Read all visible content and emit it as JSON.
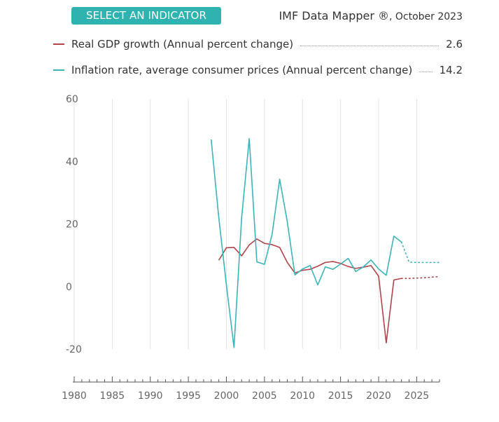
{
  "header": {
    "select_label": "SELECT AN INDICATOR",
    "source_main": "IMF Data Mapper ®",
    "source_date": ", October 2023"
  },
  "colors": {
    "accent": "#2fb3b0",
    "gdp": "#b0454a",
    "inflation": "#3cb4bb",
    "grid": "#e3e3e3"
  },
  "legend": [
    {
      "label": "Real GDP growth (Annual percent change)",
      "value": "2.6"
    },
    {
      "label": "Inflation rate, average consumer prices (Annual percent change)",
      "value": "14.2"
    }
  ],
  "chart_data": {
    "type": "line",
    "title": "",
    "xlabel": "",
    "ylabel": "",
    "xlim": [
      1980,
      2028
    ],
    "ylim": [
      -20,
      60
    ],
    "y_ticks": [
      60,
      40,
      20,
      0,
      -20
    ],
    "x_ticks": [
      1980,
      1985,
      1990,
      1995,
      2000,
      2005,
      2010,
      2015,
      2020,
      2025
    ],
    "projection_start": 2023,
    "series": [
      {
        "name": "Real GDP growth (Annual percent change)",
        "color_key": "gdp",
        "x": [
          1999,
          2000,
          2001,
          2002,
          2003,
          2004,
          2005,
          2006,
          2007,
          2008,
          2009,
          2010,
          2011,
          2012,
          2013,
          2014,
          2015,
          2016,
          2017,
          2018,
          2019,
          2020,
          2021,
          2022,
          2023,
          2024,
          2025,
          2026,
          2027,
          2028
        ],
        "values": [
          8.4,
          12.4,
          12.5,
          9.8,
          13.3,
          15.2,
          13.8,
          13.4,
          12.5,
          7.7,
          4.3,
          5.2,
          5.5,
          6.5,
          7.7,
          8.0,
          7.4,
          6.4,
          5.8,
          6.2,
          6.7,
          3.3,
          -18.0,
          2.1,
          2.6,
          2.6,
          2.7,
          2.8,
          3.0,
          3.2
        ]
      },
      {
        "name": "Inflation rate, average consumer prices (Annual percent change)",
        "color_key": "inflation",
        "x": [
          1998,
          1999,
          2000,
          2001,
          2002,
          2003,
          2004,
          2005,
          2006,
          2007,
          2008,
          2009,
          2010,
          2011,
          2012,
          2013,
          2014,
          2015,
          2016,
          2017,
          2018,
          2019,
          2020,
          2021,
          2022,
          2023,
          2024,
          2025,
          2026,
          2027,
          2028
        ],
        "values": [
          47.0,
          22.0,
          0.5,
          -19.5,
          22.0,
          47.3,
          7.9,
          7.1,
          16.6,
          34.3,
          20.7,
          3.7,
          5.6,
          6.7,
          0.5,
          6.3,
          5.5,
          7.2,
          9.0,
          4.8,
          6.3,
          8.5,
          5.6,
          3.6,
          16.1,
          14.2,
          7.8,
          7.7,
          7.7,
          7.7,
          7.7
        ]
      }
    ]
  }
}
